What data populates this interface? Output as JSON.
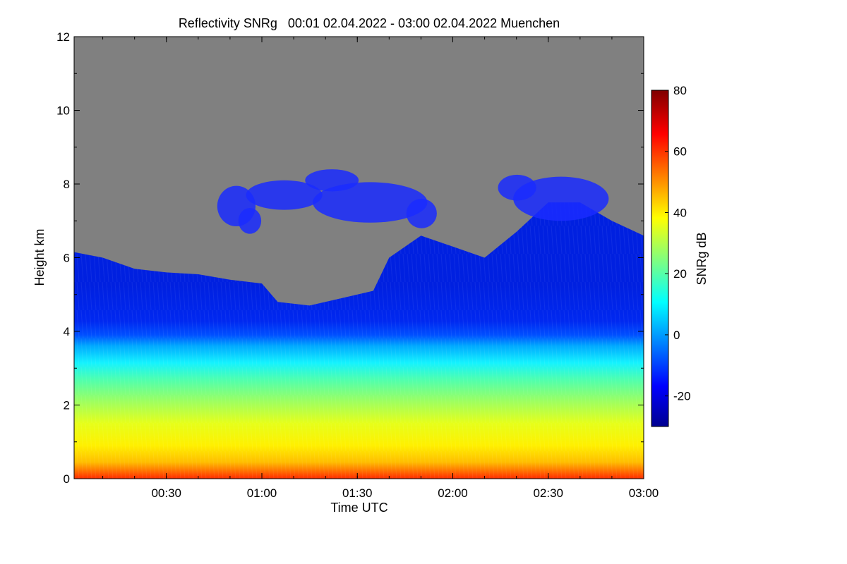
{
  "chart_data": {
    "type": "heatmap",
    "title": "Reflectivity SNRg   00:01 02.04.2022 - 03:00 02.04.2022 Muenchen",
    "xlabel": "Time UTC",
    "ylabel": "Height km",
    "xlim": [
      "00:01",
      "03:00"
    ],
    "ylim": [
      0,
      12
    ],
    "x_ticks": [
      "00:30",
      "01:00",
      "01:30",
      "02:00",
      "02:30",
      "03:00"
    ],
    "y_ticks": [
      "0",
      "2",
      "4",
      "6",
      "8",
      "10",
      "12"
    ],
    "colorbar": {
      "label": "SNRg dB",
      "range": [
        -30,
        80
      ],
      "ticks": [
        "-20",
        "0",
        "20",
        "40",
        "60",
        "80"
      ],
      "colormap": "jet",
      "colors": [
        "#00008f",
        "#0000ff",
        "#00ffff",
        "#ffff00",
        "#ff0000",
        "#800000"
      ]
    },
    "background_color": "#808080",
    "cloud_top_km": [
      {
        "time": "00:01",
        "top": 6.15
      },
      {
        "time": "00:10",
        "top": 6.0
      },
      {
        "time": "00:20",
        "top": 5.7
      },
      {
        "time": "00:30",
        "top": 5.6
      },
      {
        "time": "00:40",
        "top": 5.55
      },
      {
        "time": "00:50",
        "top": 5.4
      },
      {
        "time": "01:00",
        "top": 5.3
      },
      {
        "time": "01:05",
        "top": 4.8
      },
      {
        "time": "01:15",
        "top": 4.7
      },
      {
        "time": "01:25",
        "top": 4.9
      },
      {
        "time": "01:35",
        "top": 5.1
      },
      {
        "time": "01:40",
        "top": 6.0
      },
      {
        "time": "01:50",
        "top": 6.6
      },
      {
        "time": "02:00",
        "top": 6.3
      },
      {
        "time": "02:10",
        "top": 6.0
      },
      {
        "time": "02:20",
        "top": 6.7
      },
      {
        "time": "02:30",
        "top": 7.5
      },
      {
        "time": "02:40",
        "top": 7.5
      },
      {
        "time": "02:50",
        "top": 7.0
      },
      {
        "time": "03:00",
        "top": 6.6
      }
    ]
  }
}
